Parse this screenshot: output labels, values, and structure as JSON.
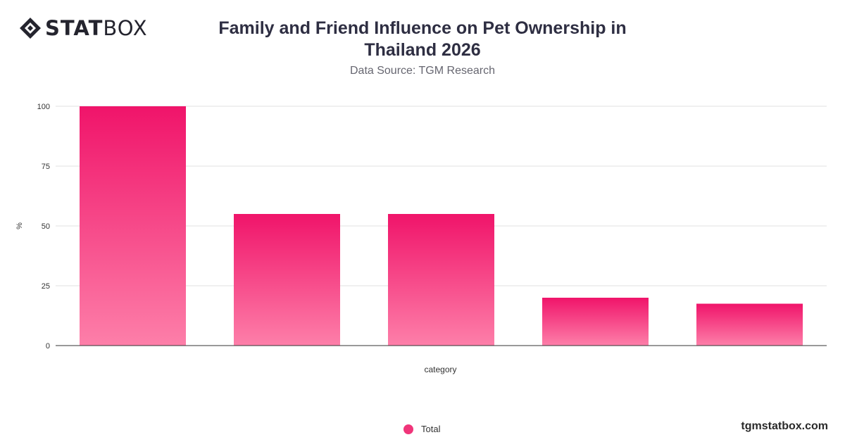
{
  "logo": {
    "text_bold": "STAT",
    "text_light": "BOX"
  },
  "title": "Family and Friend Influence on Pet Ownership in Thailand 2026",
  "subtitle": "Data Source: TGM Research",
  "brand": "tgmstatbox.com",
  "colors": {
    "bar_top": "#f0146a",
    "bar_bottom": "#fd7fa9",
    "grid": "#e2e2e2",
    "axis": "#333333"
  },
  "chart_data": {
    "type": "bar",
    "categories": [
      "",
      "",
      "",
      "",
      ""
    ],
    "series": [
      {
        "name": "Total",
        "values": [
          100,
          55,
          55,
          20,
          17.5
        ]
      }
    ],
    "xlabel": "category",
    "ylabel": "%",
    "ylim": [
      0,
      100
    ],
    "yticks": [
      0,
      25,
      50,
      75,
      100
    ],
    "grid": true,
    "legend": "bottom-center"
  }
}
